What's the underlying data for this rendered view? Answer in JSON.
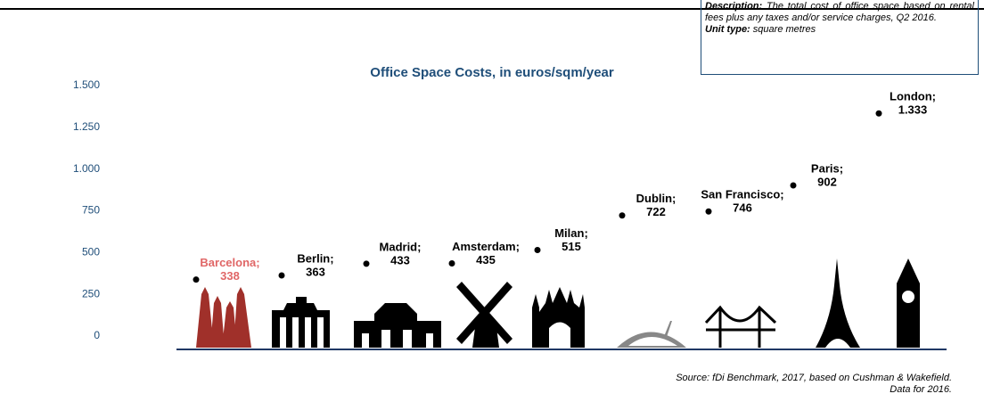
{
  "chart_data": {
    "type": "dot",
    "title": "Office Space Costs, in euros/sqm/year",
    "categories": [
      "Barcelona;",
      "Berlin;",
      "Madrid;",
      "Amsterdam;",
      "Milan;",
      "Dublin;",
      "San Francisco;",
      "Paris;",
      "London;"
    ],
    "values": [
      338,
      363,
      433,
      435,
      515,
      722,
      746,
      902,
      1333
    ],
    "value_labels": [
      "338",
      "363",
      "433",
      "435",
      "515",
      "722",
      "746",
      "902",
      "1.333"
    ],
    "color": "#000000",
    "label_colors": [
      "#e06666",
      "#000000",
      "#000000",
      "#000000",
      "#000000",
      "#000000",
      "#000000",
      "#000000",
      "#000000"
    ],
    "ylim": [
      0,
      1500
    ],
    "yticks": [
      0,
      250,
      500,
      750,
      {
        "value": 1000,
        "label": "1.000"
      },
      {
        "value": 1250,
        "label": "1.250"
      },
      {
        "value": 1500,
        "label": "1.500"
      }
    ],
    "tick_color": "#1f4e79"
  },
  "description": {
    "label": "Description:",
    "text": "The total cost of office space based on rental fees plus any taxes and/or service charges, Q2 2016.",
    "unit_label": "Unit type:",
    "unit_text": "square metres"
  },
  "source": [
    "Source: fDi Benchmark, 2017, based on Cushman & Wakefield.",
    "Data for 2016."
  ]
}
